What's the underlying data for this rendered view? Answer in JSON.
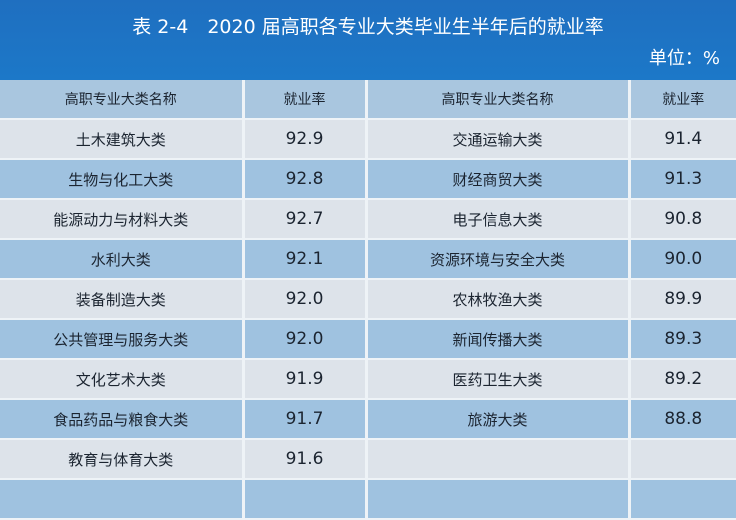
{
  "title": "表 2-4　2020 届高职各专业大类毕业生半年后的就业率",
  "unit": "单位：%",
  "headers": [
    "高职专业大类名称",
    "就业率",
    "高职专业大类名称",
    "就业率"
  ],
  "rows": [
    [
      "土木建筑大类",
      "92.9",
      "交通运输大类",
      "91.4"
    ],
    [
      "生物与化工大类",
      "92.8",
      "财经商贸大类",
      "91.3"
    ],
    [
      "能源动力与材料大类",
      "92.7",
      "电子信息大类",
      "90.8"
    ],
    [
      "水利大类",
      "92.1",
      "资源环境与安全大类",
      "90.0"
    ],
    [
      "装备制造大类",
      "92.0",
      "农林牧渔大类",
      "89.9"
    ],
    [
      "公共管理与服务大类",
      "92.0",
      "新闻传播大类",
      "89.3"
    ],
    [
      "文化艺术大类",
      "91.9",
      "医药卫生大类",
      "89.2"
    ],
    [
      "食品药品与粮食大类",
      "91.7",
      "旅游大类",
      "88.8"
    ],
    [
      "教育与体育大类",
      "91.6",
      "",
      ""
    ]
  ]
}
